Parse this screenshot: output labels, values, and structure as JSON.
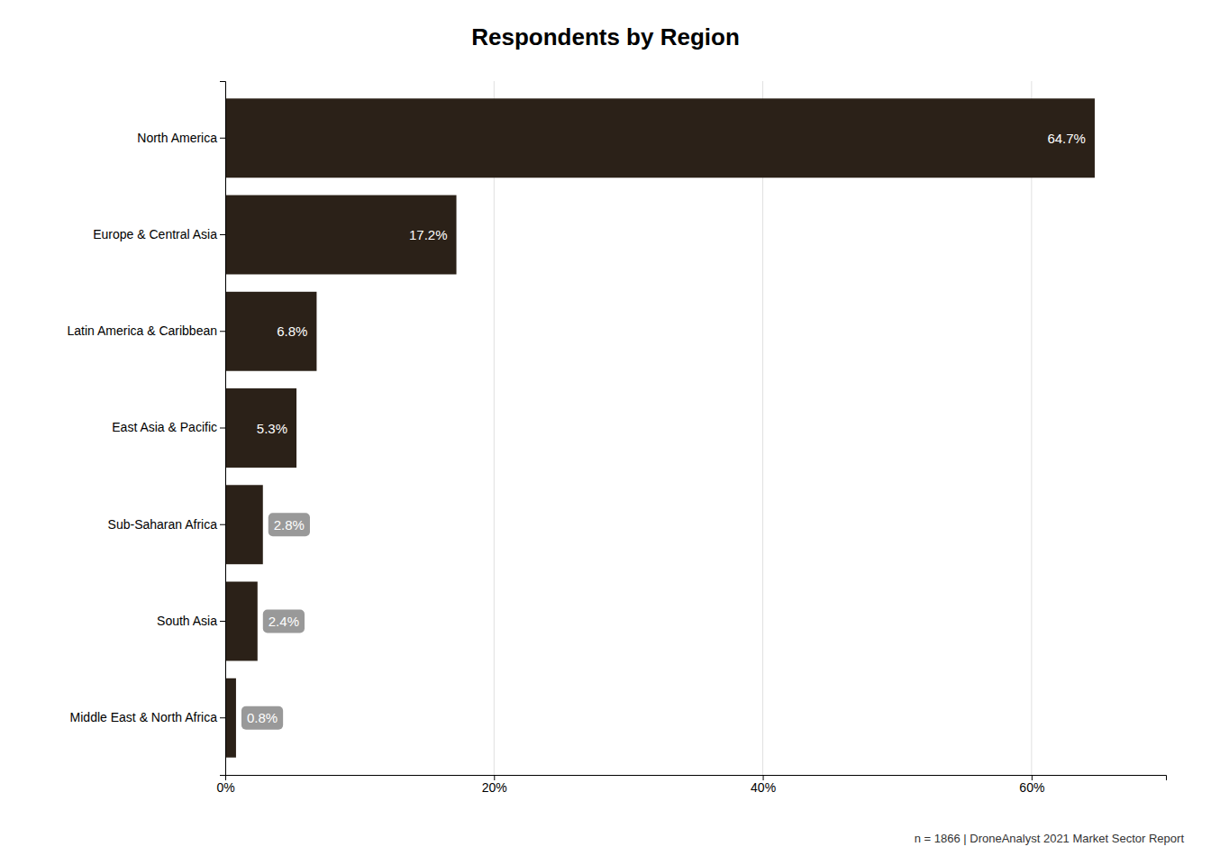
{
  "chart_data": {
    "type": "bar",
    "orientation": "horizontal",
    "title": "Respondents by Region",
    "caption": "n = 1866   |   DroneAnalyst 2021 Market Sector Report",
    "categories": [
      "North America",
      "Europe & Central Asia",
      "Latin America & Caribbean",
      "East Asia & Pacific",
      "Sub-Saharan Africa",
      "South Asia",
      "Middle East & North Africa"
    ],
    "values": [
      64.7,
      17.2,
      6.8,
      5.3,
      2.8,
      2.4,
      0.8
    ],
    "value_labels": [
      "64.7%",
      "17.2%",
      "6.8%",
      "5.3%",
      "2.8%",
      "2.4%",
      "0.8%"
    ],
    "data_labels": true,
    "color": "#2b2118",
    "xlim": [
      0,
      70
    ],
    "xticks": [
      {
        "value": 0,
        "label": "0%"
      },
      {
        "value": 20,
        "label": "20%"
      },
      {
        "value": 40,
        "label": "40%"
      },
      {
        "value": 60,
        "label": "60%"
      }
    ],
    "grid": true
  }
}
